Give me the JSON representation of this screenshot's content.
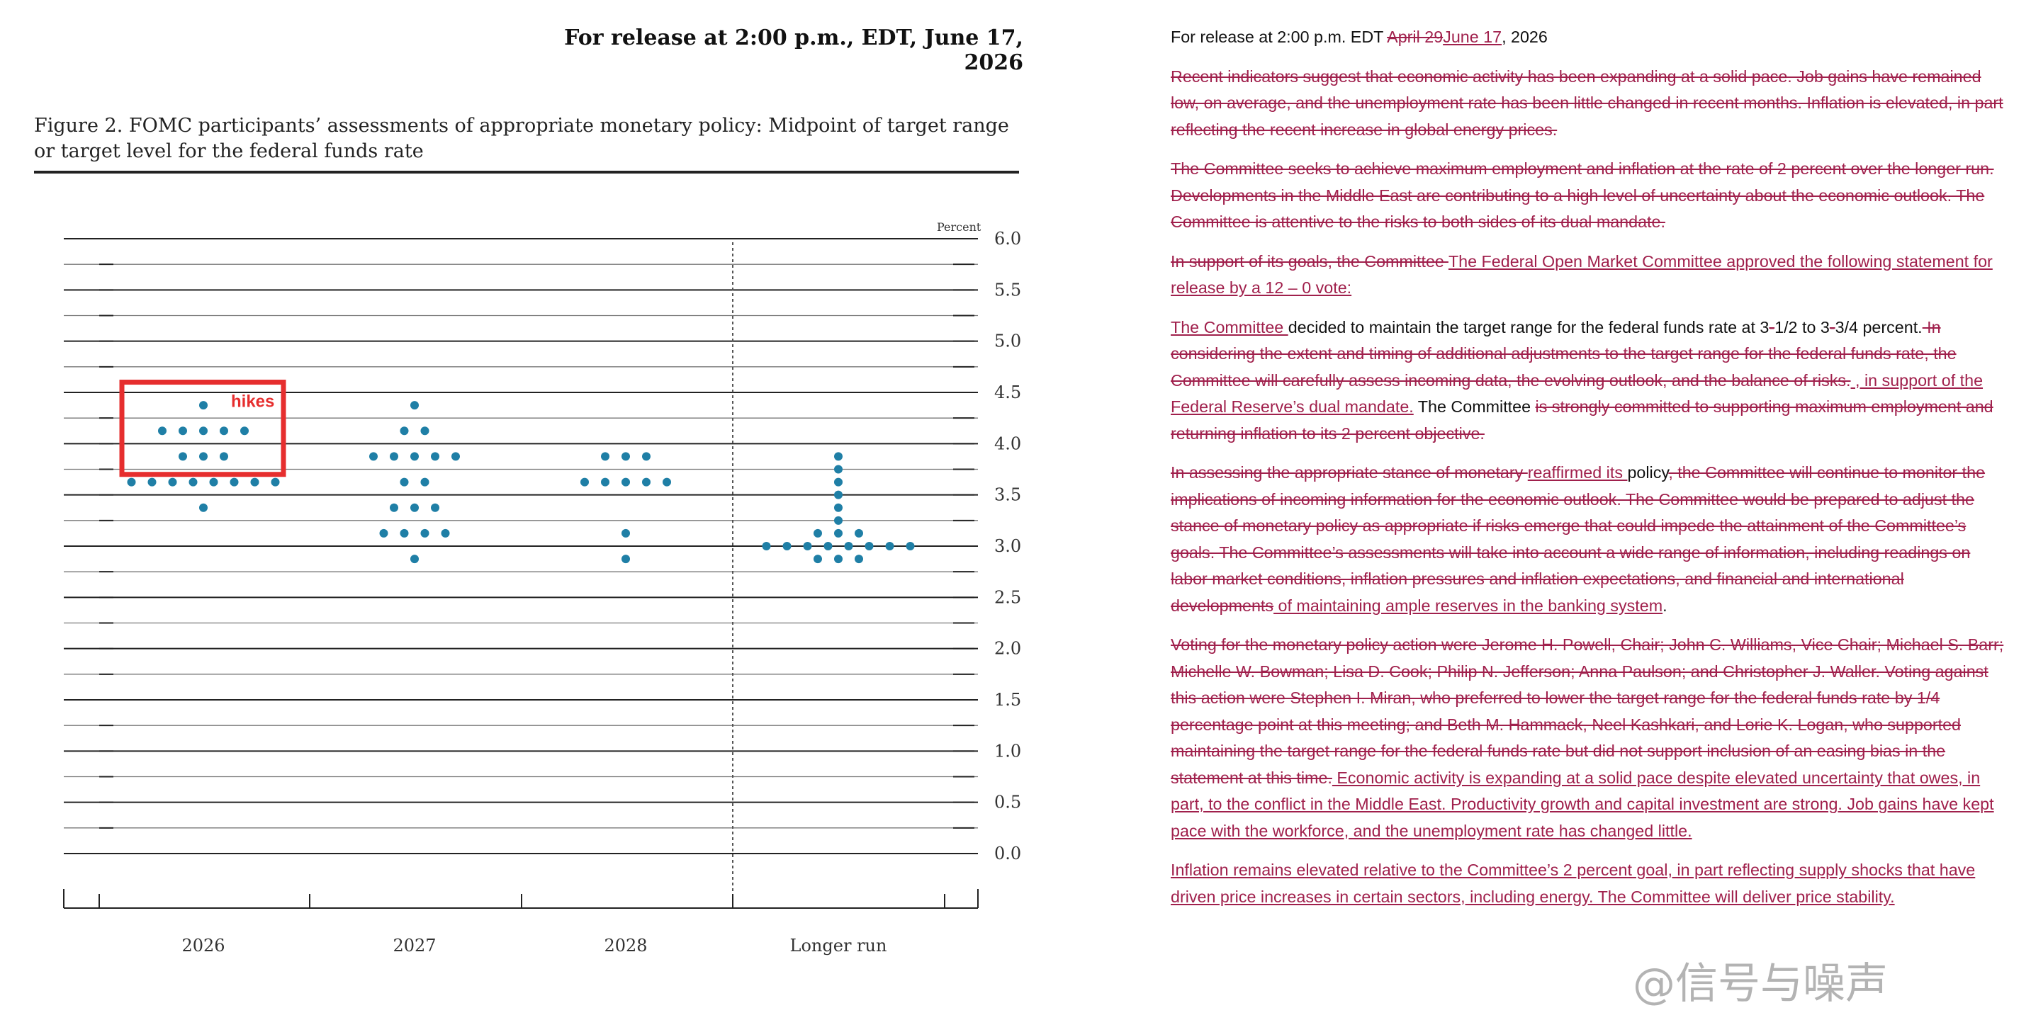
{
  "left": {
    "release": "For release at 2:00 p.m., EDT, June 17, 2026",
    "figure_title_1": "Figure 2. FOMC participants’ assessments of appropriate monetary policy: Midpoint of target range",
    "figure_title_2": "or target level for the federal funds rate"
  },
  "chart_data": {
    "type": "scatter",
    "title": "Figure 2. FOMC participants’ assessments of appropriate monetary policy: Midpoint of target range or target level for the federal funds rate",
    "ylabel": "Percent",
    "ylim": [
      0,
      6
    ],
    "yticks": [
      "6.0",
      "5.5",
      "5.0",
      "4.5",
      "4.0",
      "3.5",
      "3.0",
      "2.5",
      "2.0",
      "1.5",
      "1.0",
      "0.5",
      "0.0"
    ],
    "categories": [
      "2026",
      "2027",
      "2028",
      "Longer run"
    ],
    "dots": {
      "2026": [
        {
          "rate": 4.375,
          "n": 1
        },
        {
          "rate": 4.125,
          "n": 5
        },
        {
          "rate": 3.875,
          "n": 3
        },
        {
          "rate": 3.625,
          "n": 8
        },
        {
          "rate": 3.375,
          "n": 1
        }
      ],
      "2027": [
        {
          "rate": 4.375,
          "n": 1
        },
        {
          "rate": 4.125,
          "n": 2
        },
        {
          "rate": 3.875,
          "n": 5
        },
        {
          "rate": 3.625,
          "n": 2
        },
        {
          "rate": 3.375,
          "n": 3
        },
        {
          "rate": 3.125,
          "n": 4
        },
        {
          "rate": 2.875,
          "n": 1
        }
      ],
      "2028": [
        {
          "rate": 3.875,
          "n": 3
        },
        {
          "rate": 3.625,
          "n": 5
        },
        {
          "rate": 3.125,
          "n": 1
        },
        {
          "rate": 2.875,
          "n": 1
        }
      ],
      "Longer run": [
        {
          "rate": 3.875,
          "n": 1
        },
        {
          "rate": 3.75,
          "n": 1
        },
        {
          "rate": 3.625,
          "n": 1
        },
        {
          "rate": 3.5,
          "n": 1
        },
        {
          "rate": 3.375,
          "n": 1
        },
        {
          "rate": 3.25,
          "n": 1
        },
        {
          "rate": 3.125,
          "n": 3
        },
        {
          "rate": 3.0,
          "n": 8
        },
        {
          "rate": 2.875,
          "n": 3
        }
      ]
    },
    "annotation": {
      "text": "hikes",
      "color": "#e62e2e"
    },
    "dot_color": "#1f7fa6",
    "grid": true
  },
  "right": {
    "release_prefix": "For release at 2:00 p.m. EDT ",
    "release_del": "April 29",
    "release_ins": "June 17",
    "release_suffix": ", 2026",
    "p1_del": "Recent indicators suggest that economic activity has been expanding at a solid pace. Job gains have remained low, on average, and the unemployment rate has been little changed in recent months. Inflation is elevated, in part reflecting the recent increase in global energy prices.",
    "p2_del": "The Committee seeks to achieve maximum employment and inflation at the rate of 2 percent over the longer run. Developments in the Middle East are contributing to a high level of uncertainty about the economic outlook. The Committee is attentive to the risks to both sides of its dual mandate.",
    "p3_del": "In support of its goals, the Committee ",
    "p3_ins": "The Federal Open Market Committee approved the following statement for release by a 12 – 0 vote:",
    "p4_ins1": "The Committee ",
    "p4_txt1": "decided to maintain the target range for the federal funds rate at 3",
    "p4_del1": "-",
    "p4_txt2": "1/2 to 3",
    "p4_del2": "-",
    "p4_txt3": "3/4 percent.",
    "p4_del3": " In considering the extent and timing of additional adjustments to the target range for the federal funds rate, the Committee will carefully assess incoming data, the evolving outlook, and the balance of risks.",
    "p4_ins2": " , in support of the Federal Reserve’s dual mandate.",
    "p4_txt4": " The Committee ",
    "p4_del4": "is strongly committed to supporting maximum employment and returning inflation to its 2 percent objective.",
    "p5_del1": "In assessing the appropriate stance of monetary ",
    "p5_ins1": "reaffirmed its ",
    "p5_txt1": "policy",
    "p5_del2": ", the Committee will continue to monitor the implications of incoming information for the economic outlook. The Committee would be prepared to adjust the stance of monetary policy as appropriate if risks emerge that could impede the attainment of the Committee’s goals. The Committee’s assessments will take into account a wide range of information, including readings on labor market conditions, inflation pressures and inflation expectations, and financial and international developments",
    "p5_ins2": " of maintaining ample reserves in the banking system",
    "p5_txt2": ".",
    "p6_del": "Voting for the monetary policy action were Jerome H. Powell, Chair; John C. Williams, Vice Chair; Michael S. Barr; Michelle W. Bowman; Lisa D. Cook; Philip N. Jefferson; Anna Paulson; and Christopher J. Waller. Voting against this action were Stephen I. Miran, who preferred to lower the target range for the federal funds rate by 1/4 percentage point at this meeting; and Beth M. Hammack, Neel Kashkari, and Lorie K. Logan, who supported maintaining the target range for the federal funds rate but did not support inclusion of an easing bias in the statement at this time.",
    "p6_ins": " Economic activity is expanding at a solid pace despite elevated uncertainty that owes, in part, to the conflict in the Middle East. Productivity growth and capital investment are strong. Job gains have kept pace with the workforce, and the unemployment rate has changed little.",
    "p7_ins": "Inflation remains elevated relative to the Committee’s 2 percent goal, in part reflecting supply shocks that have driven price increases in certain sectors, including energy. The Committee will deliver price stability."
  },
  "watermark": "@信号与噪声"
}
